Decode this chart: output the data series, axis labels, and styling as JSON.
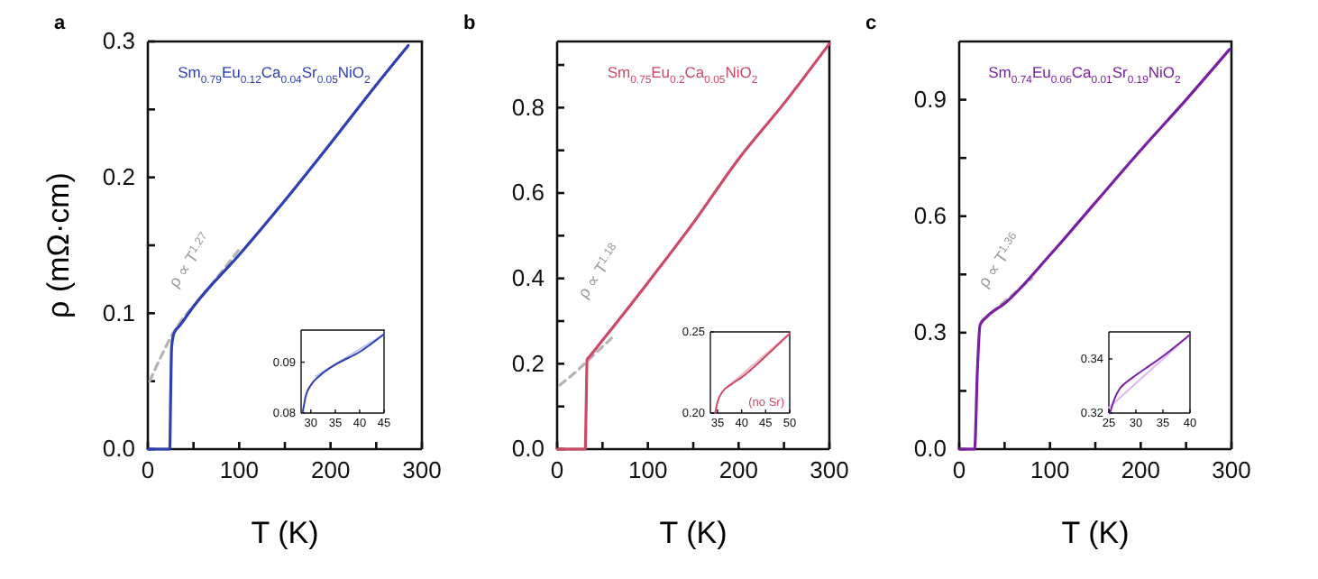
{
  "chart_data": [
    {
      "type": "line",
      "title": "a",
      "xlabel": "T (K)",
      "ylabel": "ρ (mΩ·cm)",
      "xlim": [
        0,
        300
      ],
      "ylim": [
        0,
        0.3
      ],
      "xticks": [
        0,
        {
          "value": 50,
          "label": null
        },
        100,
        {
          "value": 150,
          "label": null
        },
        200,
        {
          "value": 250,
          "label": null
        },
        300
      ],
      "yticks": [
        {
          "value": 0,
          "label": "0.0"
        },
        {
          "value": 0.05,
          "label": null
        },
        0.1,
        {
          "value": 0.15,
          "label": null
        },
        0.2,
        {
          "value": 0.25,
          "label": null
        },
        0.3
      ],
      "annotations": [
        "Sm$_{0.79}$Eu$_{0.12}$Ca$_{0.04}$Sr$_{0.05}$NiO$_{2}$",
        "ρ ∝ T$^{1.27}$"
      ],
      "series": [
        {
          "type": "line",
          "color": "#b4b4b4",
          "line_style": "dashed",
          "x": [
            2,
            30,
            60,
            100
          ],
          "values": [
            0.05,
            0.088,
            0.113,
            0.147
          ]
        },
        {
          "type": "line",
          "color": "#2e3fb2",
          "line_style": "solid",
          "x": [
            0,
            24,
            25,
            26,
            28,
            30,
            35,
            50,
            100,
            150,
            200,
            250,
            285
          ],
          "values": [
            0,
            0,
            0.04,
            0.075,
            0.084,
            0.087,
            0.091,
            0.105,
            0.143,
            0.183,
            0.225,
            0.268,
            0.297
          ]
        }
      ]
    },
    {
      "type": "line",
      "xlim": [
        28,
        45
      ],
      "ylim": [
        0.08,
        0.0963
      ],
      "xticks": [
        30,
        35,
        40,
        45
      ],
      "yticks": [
        0.08,
        0.09
      ],
      "series": [
        {
          "type": "line",
          "color": "#b8c4ec",
          "line_style": "solid",
          "x": [
            31,
            45
          ],
          "values": [
            0.0872,
            0.0955
          ]
        },
        {
          "type": "line",
          "color": "#2e3fb2",
          "line_style": "solid",
          "x": [
            28.3,
            29,
            30,
            32,
            35,
            40,
            45
          ],
          "values": [
            0.08,
            0.0835,
            0.0855,
            0.0875,
            0.0895,
            0.092,
            0.0955
          ]
        }
      ]
    },
    {
      "type": "line",
      "title": "b",
      "xlabel": "T (K)",
      "xlim": [
        0,
        300
      ],
      "ylim": [
        0,
        0.955
      ],
      "xticks": [
        0,
        {
          "value": 50,
          "label": null
        },
        100,
        {
          "value": 150,
          "label": null
        },
        200,
        {
          "value": 250,
          "label": null
        },
        300
      ],
      "yticks": [
        {
          "value": 0,
          "label": "0.0"
        },
        {
          "value": 0.1,
          "label": null
        },
        0.2,
        {
          "value": 0.3,
          "label": null
        },
        0.4,
        {
          "value": 0.5,
          "label": null
        },
        0.6,
        {
          "value": 0.7,
          "label": null
        },
        0.8,
        {
          "value": 0.9,
          "label": null
        }
      ],
      "annotations": [
        "Sm$_{0.75}$Eu$_{0.2}$Ca$_{0.05}$NiO$_{2}$",
        "ρ ∝ T$^{1.18}$"
      ],
      "series": [
        {
          "type": "line",
          "color": "#b4b4b4",
          "line_style": "dashed",
          "x": [
            3,
            20,
            40,
            60
          ],
          "values": [
            0.15,
            0.18,
            0.22,
            0.26
          ]
        },
        {
          "type": "line",
          "color": "#cc4a66",
          "line_style": "solid",
          "x": [
            0,
            31,
            32,
            33,
            35,
            50,
            100,
            150,
            200,
            250,
            300
          ],
          "values": [
            0,
            0,
            0.1,
            0.21,
            0.215,
            0.255,
            0.39,
            0.53,
            0.68,
            0.81,
            0.95
          ]
        }
      ]
    },
    {
      "type": "line",
      "xlim": [
        33.5,
        50
      ],
      "ylim": [
        0.2,
        0.25
      ],
      "xticks": [
        35,
        40,
        45,
        50
      ],
      "yticks": [
        {
          "value": 0.2,
          "label": "0.20"
        },
        0.25
      ],
      "annotations": [
        "(no Sr)"
      ],
      "series": [
        {
          "type": "line",
          "color": "#f0b8c4",
          "line_style": "solid",
          "x": [
            37,
            50
          ],
          "values": [
            0.216,
            0.249
          ]
        },
        {
          "type": "line",
          "color": "#cc4a66",
          "line_style": "solid",
          "x": [
            34.5,
            35,
            36,
            38,
            40,
            45,
            50
          ],
          "values": [
            0.2,
            0.207,
            0.213,
            0.218,
            0.222,
            0.235,
            0.249
          ]
        }
      ]
    },
    {
      "type": "line",
      "title": "c",
      "xlabel": "T (K)",
      "xlim": [
        0,
        300
      ],
      "ylim": [
        0,
        1.05
      ],
      "xticks": [
        0,
        {
          "value": 50,
          "label": null
        },
        100,
        {
          "value": 150,
          "label": null
        },
        200,
        {
          "value": 250,
          "label": null
        },
        300
      ],
      "yticks": [
        {
          "value": 0,
          "label": "0.0"
        },
        {
          "value": 0.15,
          "label": null
        },
        0.3,
        {
          "value": 0.45,
          "label": null
        },
        0.6,
        {
          "value": 0.75,
          "label": null
        },
        0.9
      ],
      "annotations": [
        "Sm$_{0.74}$Eu$_{0.06}$Ca$_{0.01}$Sr$_{0.19}$NiO$_{2}$",
        "ρ ∝ T$^{1.36}$"
      ],
      "series": [
        {
          "type": "line",
          "color": "#b4b4b4",
          "line_style": "dashed",
          "x": [
            25,
            40,
            60,
            80
          ],
          "values": [
            0.33,
            0.36,
            0.4,
            0.44
          ]
        },
        {
          "type": "line",
          "color": "#7a1fa2",
          "line_style": "solid",
          "x": [
            0,
            17,
            20,
            23,
            30,
            50,
            100,
            150,
            200,
            250,
            298
          ],
          "values": [
            0,
            0,
            0.2,
            0.32,
            0.34,
            0.375,
            0.5,
            0.635,
            0.77,
            0.9,
            1.03
          ]
        }
      ]
    },
    {
      "type": "line",
      "xlim": [
        25,
        40
      ],
      "ylim": [
        0.32,
        0.35
      ],
      "xticks": [
        25,
        30,
        35,
        40
      ],
      "yticks": [
        0.32,
        0.34
      ],
      "series": [
        {
          "type": "line",
          "color": "#e2b4f0",
          "line_style": "solid",
          "x": [
            25,
            40
          ],
          "values": [
            0.322,
            0.349
          ]
        },
        {
          "type": "line",
          "color": "#7a1fa2",
          "line_style": "solid",
          "x": [
            25.2,
            26,
            27,
            28,
            30,
            35,
            40
          ],
          "values": [
            0.32,
            0.325,
            0.329,
            0.331,
            0.334,
            0.341,
            0.349
          ]
        }
      ]
    }
  ]
}
